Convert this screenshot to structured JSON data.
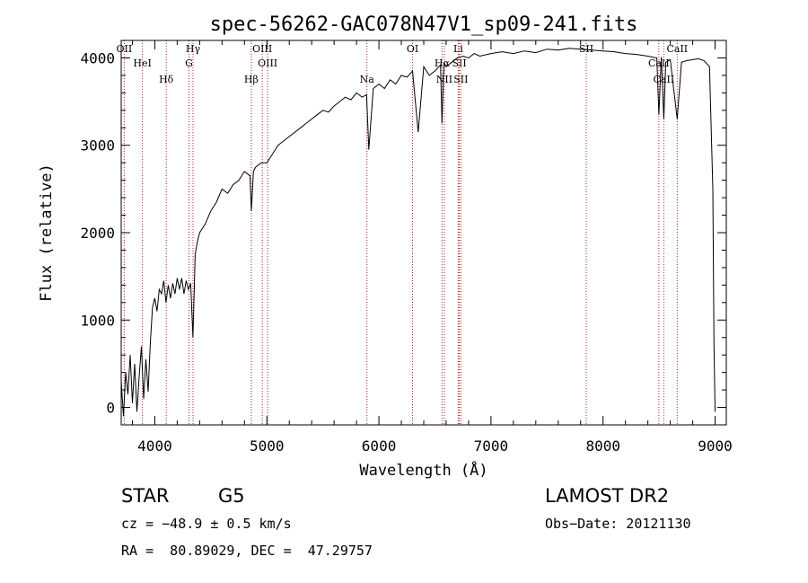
{
  "chart_data": {
    "type": "line",
    "title": "spec-56262-GAC078N47V1_sp09-241.fits",
    "xlabel": "Wavelength (Å)",
    "ylabel": "Flux (relative)",
    "xlim": [
      3700,
      9100
    ],
    "ylim": [
      -200,
      4200
    ],
    "xticks": [
      4000,
      5000,
      6000,
      7000,
      8000,
      9000
    ],
    "yticks": [
      0,
      1000,
      2000,
      3000,
      4000
    ],
    "grid": false,
    "series": [
      {
        "x": [
          3700,
          3720,
          3740,
          3760,
          3780,
          3800,
          3820,
          3840,
          3860,
          3880,
          3900,
          3920,
          3940,
          3960,
          3980,
          4000,
          4020,
          4040,
          4060,
          4080,
          4100,
          4120,
          4140,
          4160,
          4180,
          4200,
          4220,
          4240,
          4260,
          4280,
          4300,
          4320,
          4340,
          4360,
          4380,
          4400,
          4450,
          4500,
          4550,
          4600,
          4650,
          4700,
          4750,
          4800,
          4850,
          4862,
          4880,
          4900,
          4950,
          5000,
          5050,
          5100,
          5150,
          5200,
          5250,
          5300,
          5350,
          5400,
          5450,
          5500,
          5550,
          5600,
          5650,
          5700,
          5750,
          5800,
          5850,
          5890,
          5910,
          5950,
          6000,
          6050,
          6100,
          6150,
          6200,
          6250,
          6300,
          6350,
          6400,
          6450,
          6500,
          6550,
          6563,
          6580,
          6600,
          6650,
          6700,
          6750,
          6800,
          6850,
          6900,
          7000,
          7100,
          7200,
          7300,
          7400,
          7500,
          7600,
          7700,
          7800,
          7900,
          8000,
          8100,
          8200,
          8300,
          8400,
          8480,
          8498,
          8520,
          8542,
          8560,
          8600,
          8662,
          8700,
          8750,
          8800,
          8850,
          8900,
          8950,
          8980,
          8990,
          9000
        ],
        "y": [
          300,
          -100,
          400,
          150,
          600,
          50,
          500,
          -50,
          350,
          700,
          100,
          550,
          180,
          750,
          1150,
          1250,
          1100,
          1350,
          1300,
          1450,
          1200,
          1400,
          1250,
          1420,
          1300,
          1480,
          1350,
          1480,
          1300,
          1450,
          1350,
          1420,
          800,
          1750,
          1900,
          2000,
          2100,
          2250,
          2350,
          2500,
          2450,
          2550,
          2600,
          2700,
          2650,
          2250,
          2700,
          2750,
          2800,
          2800,
          2900,
          3000,
          3050,
          3100,
          3150,
          3200,
          3250,
          3300,
          3350,
          3400,
          3380,
          3450,
          3500,
          3550,
          3520,
          3600,
          3550,
          3580,
          2950,
          3650,
          3700,
          3650,
          3750,
          3700,
          3800,
          3780,
          3850,
          3150,
          3900,
          3800,
          3850,
          3920,
          3250,
          3950,
          3900,
          3950,
          4000,
          4020,
          4000,
          4050,
          4020,
          4050,
          4070,
          4050,
          4080,
          4060,
          4100,
          4090,
          4110,
          4100,
          4090,
          4080,
          4070,
          4050,
          4040,
          4020,
          4000,
          3350,
          4010,
          3300,
          3950,
          3980,
          3300,
          3950,
          3970,
          3980,
          3990,
          3970,
          3900,
          2500,
          700,
          -50
        ]
      }
    ],
    "lines": [
      {
        "label": "OII",
        "x": 3727
      },
      {
        "label": "HeI",
        "x": 3889
      },
      {
        "label": "Hδ",
        "x": 4102
      },
      {
        "label": "Hγ",
        "x": 4341
      },
      {
        "label": "G",
        "x": 4305
      },
      {
        "label": "Hβ",
        "x": 4861
      },
      {
        "label": "OIII",
        "x": 4959
      },
      {
        "label": "OIII",
        "x": 5007
      },
      {
        "label": "Na",
        "x": 5893
      },
      {
        "label": "OI",
        "x": 6300
      },
      {
        "label": "Hα",
        "x": 6563
      },
      {
        "label": "NII",
        "x": 6584
      },
      {
        "label": "Li",
        "x": 6708
      },
      {
        "label": "SII",
        "x": 6717
      },
      {
        "label": "SII",
        "x": 6731
      },
      {
        "label": "SII",
        "x": 7850
      },
      {
        "label": "CaII",
        "x": 8498
      },
      {
        "label": "CaII",
        "x": 8542
      },
      {
        "label": "CaII",
        "x": 8662
      }
    ]
  },
  "info": {
    "object_class": "STAR",
    "subclass": "G5",
    "survey": "LAMOST DR2",
    "cz": "cz = −48.9 ± 0.5 km/s",
    "obs_date": "Obs−Date: 20121130",
    "coords": "RA =  80.89029, DEC =  47.29757"
  }
}
